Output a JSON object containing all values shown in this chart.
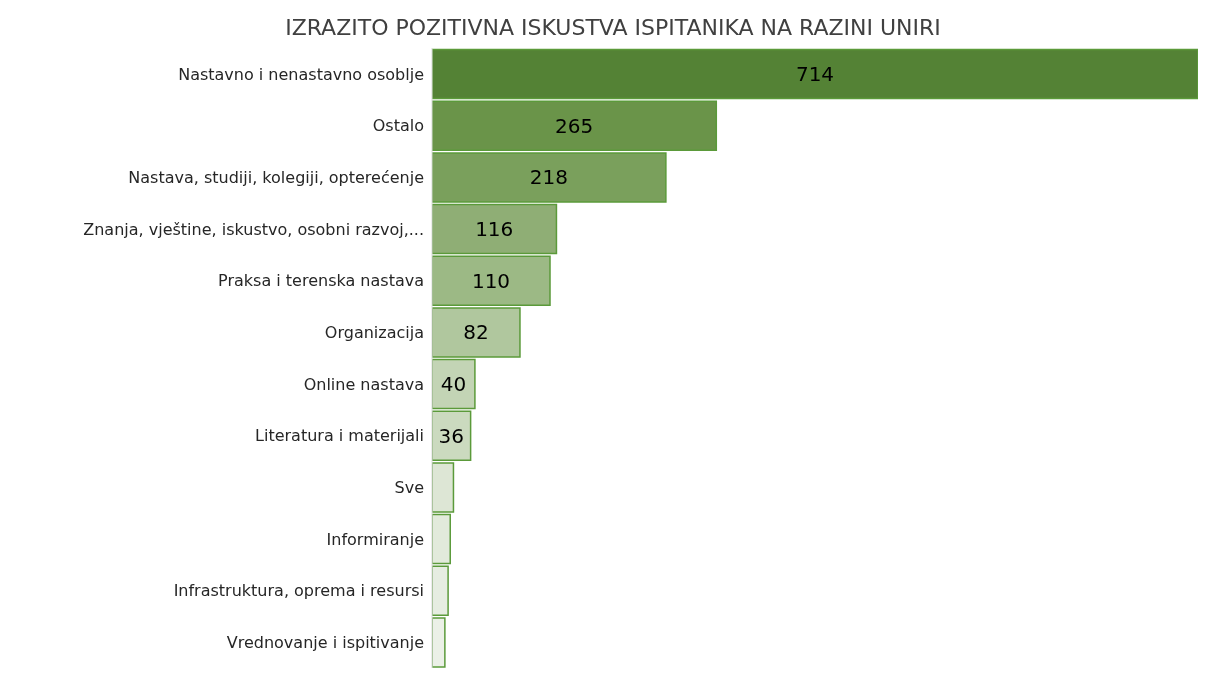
{
  "chart_data": {
    "type": "bar",
    "title": "IZRAZITO POZITIVNA ISKUSTVA ISPITANIKA NA RAZINI UNIRI",
    "orientation": "horizontal",
    "categories": [
      "Nastavno i nenastavno osoblje",
      "Ostalo",
      "Nastava, studiji, kolegiji, opterećenje",
      "Znanja, vještine, iskustvo, osobni razvoj,...",
      "Praksa i terenska nastava",
      "Organizacija",
      "Online nastava",
      "Literatura i materijali",
      "Sve",
      "Informiranje",
      "Infrastruktura, oprema i resursi",
      "Vrednovanje i ispitivanje"
    ],
    "values": [
      714,
      265,
      218,
      116,
      110,
      82,
      40,
      36,
      20,
      17,
      15,
      12
    ],
    "value_labels": [
      "714",
      "265",
      "218",
      "116",
      "110",
      "82",
      "40",
      "36",
      null,
      null,
      null,
      null
    ],
    "colors": [
      "#548235",
      "#6a9449",
      "#7aa05c",
      "#8fae75",
      "#9cb985",
      "#b0c79e",
      "#c3d4b5",
      "#cbdabf",
      "#dde6d5",
      "#e2eadb",
      "#e6ede1",
      "#ebf0e7"
    ],
    "tick_labels": "y"
  }
}
